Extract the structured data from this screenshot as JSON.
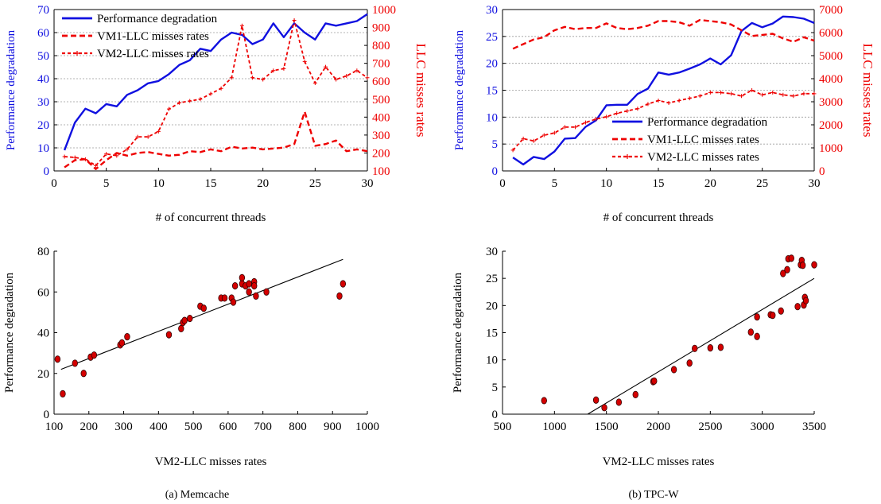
{
  "colors": {
    "blue": "#1010e0",
    "red": "#ee0000",
    "black": "#000000",
    "marker": "#d40000"
  },
  "captions": [
    "(a) Memcache",
    "(b) TPC-W"
  ],
  "chart_data": [
    {
      "type": "line",
      "x": [
        1,
        2,
        3,
        4,
        5,
        6,
        7,
        8,
        9,
        10,
        11,
        12,
        13,
        14,
        15,
        16,
        17,
        18,
        19,
        20,
        21,
        22,
        23,
        24,
        25,
        26,
        27,
        28,
        29,
        30
      ],
      "xlabel": "# of concurrent threads",
      "ylabel": "Performance degradation",
      "y2label": "LLC misses rates",
      "xlim": [
        0,
        30
      ],
      "ylim": [
        0,
        70
      ],
      "y2lim": [
        100,
        1000
      ],
      "xticks": [
        0,
        5,
        10,
        15,
        20,
        25,
        30
      ],
      "yticks": [
        0,
        10,
        20,
        30,
        40,
        50,
        60,
        70
      ],
      "y2ticks": [
        100,
        200,
        300,
        400,
        500,
        600,
        700,
        800,
        900,
        1000
      ],
      "grid": "y",
      "legend_position": "top-left",
      "series": [
        {
          "name": "Performance degradation",
          "axis": "left",
          "values": [
            9,
            21,
            27,
            25,
            29,
            28,
            33,
            35,
            38,
            39,
            42,
            46,
            48,
            53,
            52,
            57,
            60,
            59,
            55,
            57,
            64,
            58,
            64,
            60,
            57,
            64,
            63,
            64,
            65,
            68
          ]
        },
        {
          "name": "VM1-LLC misses rates",
          "axis": "right",
          "values": [
            120,
            160,
            165,
            110,
            160,
            200,
            185,
            200,
            205,
            195,
            185,
            190,
            210,
            205,
            220,
            210,
            235,
            225,
            230,
            220,
            225,
            230,
            250,
            430,
            240,
            250,
            270,
            210,
            220,
            210
          ]
        },
        {
          "name": "VM2-LLC misses rates",
          "axis": "right",
          "values": [
            180,
            175,
            165,
            130,
            195,
            185,
            220,
            290,
            290,
            320,
            445,
            480,
            490,
            500,
            530,
            560,
            620,
            910,
            620,
            610,
            660,
            670,
            940,
            710,
            590,
            680,
            610,
            630,
            660,
            620
          ]
        }
      ]
    },
    {
      "type": "line",
      "x": [
        1,
        2,
        3,
        4,
        5,
        6,
        7,
        8,
        9,
        10,
        11,
        12,
        13,
        14,
        15,
        16,
        17,
        18,
        19,
        20,
        21,
        22,
        23,
        24,
        25,
        26,
        27,
        28,
        29,
        30
      ],
      "xlabel": "# of concurrent threads",
      "ylabel": "Performance degradation",
      "y2label": "LLC misses rates",
      "xlim": [
        0,
        30
      ],
      "ylim": [
        0,
        30
      ],
      "y2lim": [
        0,
        7000
      ],
      "xticks": [
        0,
        5,
        10,
        15,
        20,
        25,
        30
      ],
      "yticks": [
        0,
        5,
        10,
        15,
        20,
        25,
        30
      ],
      "y2ticks": [
        0,
        1000,
        2000,
        3000,
        4000,
        5000,
        6000,
        7000
      ],
      "grid": "y",
      "legend_position": "bottom-right",
      "series": [
        {
          "name": "Performance degradation",
          "axis": "left",
          "values": [
            2.5,
            1.2,
            2.6,
            2.2,
            3.6,
            6.0,
            6.1,
            8.2,
            9.4,
            12.2,
            12.3,
            12.3,
            14.3,
            15.3,
            18.3,
            17.9,
            18.3,
            19.0,
            19.8,
            20.9,
            19.8,
            21.5,
            26.0,
            27.5,
            26.7,
            27.4,
            28.7,
            28.6,
            28.3,
            27.5
          ]
        },
        {
          "name": "VM1-LLC misses rates",
          "axis": "right",
          "values": [
            5300,
            5500,
            5700,
            5800,
            6100,
            6250,
            6150,
            6200,
            6200,
            6400,
            6200,
            6150,
            6200,
            6300,
            6500,
            6500,
            6450,
            6300,
            6550,
            6500,
            6450,
            6350,
            6100,
            5850,
            5900,
            5950,
            5750,
            5600,
            5800,
            5650
          ]
        },
        {
          "name": "VM2-LLC misses rates",
          "axis": "right",
          "values": [
            900,
            1400,
            1300,
            1550,
            1650,
            1900,
            1900,
            2100,
            2250,
            2350,
            2500,
            2600,
            2700,
            2900,
            3050,
            2950,
            3050,
            3150,
            3250,
            3400,
            3400,
            3350,
            3250,
            3500,
            3300,
            3400,
            3300,
            3250,
            3350,
            3350
          ]
        }
      ]
    },
    {
      "type": "scatter",
      "xlabel": "VM2-LLC misses rates",
      "ylabel": "Performance degradation",
      "xlim": [
        100,
        1000
      ],
      "ylim": [
        0,
        80
      ],
      "xticks": [
        100,
        200,
        300,
        400,
        500,
        600,
        700,
        800,
        900,
        1000
      ],
      "yticks": [
        0,
        20,
        40,
        60,
        80
      ],
      "grid": "none",
      "fit_line": {
        "x": [
          120,
          930
        ],
        "y": [
          22,
          76
        ]
      },
      "points": [
        [
          110,
          27
        ],
        [
          125,
          10
        ],
        [
          160,
          25
        ],
        [
          185,
          20
        ],
        [
          205,
          28
        ],
        [
          215,
          29
        ],
        [
          290,
          34
        ],
        [
          295,
          35
        ],
        [
          310,
          38
        ],
        [
          430,
          39
        ],
        [
          465,
          42
        ],
        [
          470,
          45
        ],
        [
          475,
          46
        ],
        [
          490,
          47
        ],
        [
          520,
          53
        ],
        [
          530,
          52
        ],
        [
          580,
          57
        ],
        [
          590,
          57
        ],
        [
          610,
          57
        ],
        [
          615,
          55
        ],
        [
          620,
          63
        ],
        [
          640,
          64
        ],
        [
          640,
          67
        ],
        [
          650,
          63
        ],
        [
          660,
          60
        ],
        [
          660,
          64
        ],
        [
          675,
          65
        ],
        [
          675,
          63
        ],
        [
          680,
          58
        ],
        [
          710,
          60
        ],
        [
          920,
          58
        ],
        [
          930,
          64
        ]
      ]
    },
    {
      "type": "scatter",
      "xlabel": "VM2-LLC misses rates",
      "ylabel": "Performance degradation",
      "xlim": [
        500,
        3500
      ],
      "ylim": [
        0,
        30
      ],
      "xticks": [
        500,
        1000,
        1500,
        2000,
        2500,
        3000,
        3500
      ],
      "yticks": [
        0,
        5,
        10,
        15,
        20,
        25,
        30
      ],
      "grid": "none",
      "fit_line": {
        "x": [
          1320,
          3500
        ],
        "y": [
          0,
          25
        ]
      },
      "points": [
        [
          900,
          2.5
        ],
        [
          1400,
          2.6
        ],
        [
          1480,
          1.2
        ],
        [
          1620,
          2.2
        ],
        [
          1780,
          3.6
        ],
        [
          1950,
          6.0
        ],
        [
          1960,
          6.1
        ],
        [
          2150,
          8.2
        ],
        [
          2300,
          9.4
        ],
        [
          2350,
          12.1
        ],
        [
          2500,
          12.2
        ],
        [
          2600,
          12.3
        ],
        [
          2890,
          15.1
        ],
        [
          2950,
          14.3
        ],
        [
          2950,
          17.9
        ],
        [
          3080,
          18.3
        ],
        [
          3100,
          18.2
        ],
        [
          3180,
          19.0
        ],
        [
          3200,
          25.9
        ],
        [
          3240,
          26.6
        ],
        [
          3250,
          28.6
        ],
        [
          3280,
          28.7
        ],
        [
          3340,
          19.8
        ],
        [
          3370,
          27.5
        ],
        [
          3380,
          28.3
        ],
        [
          3390,
          27.4
        ],
        [
          3400,
          20.1
        ],
        [
          3410,
          21.5
        ],
        [
          3420,
          20.9
        ],
        [
          3500,
          27.5
        ]
      ]
    }
  ]
}
